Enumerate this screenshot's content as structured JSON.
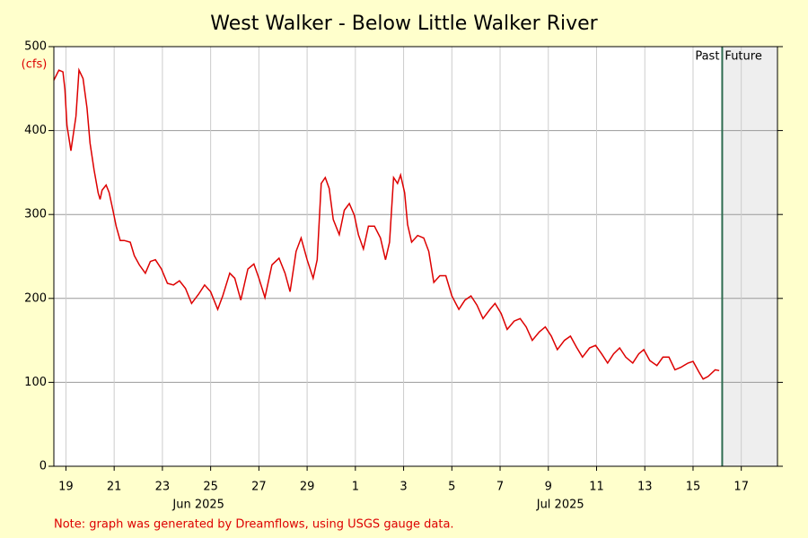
{
  "chart_data": {
    "type": "line",
    "title": "West Walker - Below Little Walker River",
    "y_label": "(cfs)",
    "note": "Note: graph was generated by Dreamflows, using USGS gauge data.",
    "past_label": "Past",
    "future_label": "Future",
    "now": "2025-07-16T17:00",
    "grid": true,
    "xlim": [
      "2025-06-19T00:00",
      "2025-07-19T00:00"
    ],
    "xticks": [
      {
        "value": "2025-06-19T12:00",
        "label": "19"
      },
      {
        "value": "2025-06-21T12:00",
        "label": "21"
      },
      {
        "value": "2025-06-23T12:00",
        "label": "23"
      },
      {
        "value": "2025-06-25T12:00",
        "label": "25"
      },
      {
        "value": "2025-06-27T12:00",
        "label": "27"
      },
      {
        "value": "2025-06-29T12:00",
        "label": "29"
      },
      {
        "value": "2025-07-01T12:00",
        "label": "1"
      },
      {
        "value": "2025-07-03T12:00",
        "label": "3"
      },
      {
        "value": "2025-07-05T12:00",
        "label": "5"
      },
      {
        "value": "2025-07-07T12:00",
        "label": "7"
      },
      {
        "value": "2025-07-09T12:00",
        "label": "9"
      },
      {
        "value": "2025-07-11T12:00",
        "label": "11"
      },
      {
        "value": "2025-07-13T12:00",
        "label": "13"
      },
      {
        "value": "2025-07-15T12:00",
        "label": "15"
      },
      {
        "value": "2025-07-17T12:00",
        "label": "17"
      }
    ],
    "month_labels": [
      {
        "value": "2025-06-25T00:00",
        "label": "Jun 2025"
      },
      {
        "value": "2025-07-10T00:00",
        "label": "Jul 2025"
      }
    ],
    "ylim": [
      0,
      500
    ],
    "yticks": [
      0,
      100,
      200,
      300,
      400,
      500
    ],
    "x": [
      "2025-06-19T00:00",
      "2025-06-19T05:00",
      "2025-06-19T09:00",
      "2025-06-19T11:00",
      "2025-06-19T13:00",
      "2025-06-19T17:00",
      "2025-06-19T22:00",
      "2025-06-20T01:00",
      "2025-06-20T05:00",
      "2025-06-20T09:00",
      "2025-06-20T12:00",
      "2025-06-20T16:00",
      "2025-06-20T20:00",
      "2025-06-20T22:00",
      "2025-06-21T00:00",
      "2025-06-21T04:00",
      "2025-06-21T07:00",
      "2025-06-21T11:00",
      "2025-06-21T14:00",
      "2025-06-21T18:00",
      "2025-06-21T22:00",
      "2025-06-22T04:00",
      "2025-06-22T08:00",
      "2025-06-22T13:00",
      "2025-06-22T19:00",
      "2025-06-23T00:00",
      "2025-06-23T05:00",
      "2025-06-23T11:00",
      "2025-06-23T17:00",
      "2025-06-23T23:00",
      "2025-06-24T05:00",
      "2025-06-24T11:00",
      "2025-06-24T17:00",
      "2025-06-25T00:00",
      "2025-06-25T06:00",
      "2025-06-25T12:00",
      "2025-06-25T19:00",
      "2025-06-26T00:00",
      "2025-06-26T07:00",
      "2025-06-26T12:00",
      "2025-06-26T18:00",
      "2025-06-27T01:00",
      "2025-06-27T07:00",
      "2025-06-27T12:00",
      "2025-06-27T18:00",
      "2025-06-28T01:00",
      "2025-06-28T08:00",
      "2025-06-28T14:00",
      "2025-06-28T19:00",
      "2025-06-29T01:00",
      "2025-06-29T06:00",
      "2025-06-29T12:00",
      "2025-06-29T18:00",
      "2025-06-29T22:00",
      "2025-06-30T02:00",
      "2025-06-30T06:00",
      "2025-06-30T10:00",
      "2025-06-30T14:00",
      "2025-06-30T20:00",
      "2025-07-01T01:00",
      "2025-07-01T06:00",
      "2025-07-01T11:00",
      "2025-07-01T15:00",
      "2025-07-01T20:00",
      "2025-07-02T01:00",
      "2025-07-02T07:00",
      "2025-07-02T13:00",
      "2025-07-02T18:00",
      "2025-07-02T22:00",
      "2025-07-03T02:00",
      "2025-07-03T06:00",
      "2025-07-03T09:00",
      "2025-07-03T13:00",
      "2025-07-03T16:00",
      "2025-07-03T20:00",
      "2025-07-04T02:00",
      "2025-07-04T08:00",
      "2025-07-04T13:00",
      "2025-07-04T18:00",
      "2025-07-05T00:00",
      "2025-07-05T06:00",
      "2025-07-05T12:00",
      "2025-07-05T19:00",
      "2025-07-06T01:00",
      "2025-07-06T07:00",
      "2025-07-06T13:00",
      "2025-07-06T19:00",
      "2025-07-07T02:00",
      "2025-07-07T07:00",
      "2025-07-07T13:00",
      "2025-07-07T19:00",
      "2025-07-08T02:00",
      "2025-07-08T08:00",
      "2025-07-08T14:00",
      "2025-07-08T20:00",
      "2025-07-09T03:00",
      "2025-07-09T09:00",
      "2025-07-09T15:00",
      "2025-07-09T21:00",
      "2025-07-10T04:00",
      "2025-07-10T10:00",
      "2025-07-10T16:00",
      "2025-07-10T22:00",
      "2025-07-11T05:00",
      "2025-07-11T11:00",
      "2025-07-11T17:00",
      "2025-07-11T23:00",
      "2025-07-12T05:00",
      "2025-07-12T11:00",
      "2025-07-12T17:00",
      "2025-07-13T00:00",
      "2025-07-13T06:00",
      "2025-07-13T11:00",
      "2025-07-13T17:00",
      "2025-07-14T00:00",
      "2025-07-14T06:00",
      "2025-07-14T12:00",
      "2025-07-14T18:00",
      "2025-07-15T00:00",
      "2025-07-15T07:00",
      "2025-07-15T12:00",
      "2025-07-15T18:00",
      "2025-07-15T22:00",
      "2025-07-16T03:00",
      "2025-07-16T10:00",
      "2025-07-16T14:00"
    ],
    "series": [
      {
        "name": "Flow",
        "color": "#dd0000",
        "values": [
          460,
          472,
          470,
          449,
          406,
          376,
          417,
          472,
          462,
          427,
          385,
          353,
          326,
          318,
          329,
          335,
          326,
          304,
          286,
          269,
          269,
          267,
          251,
          240,
          230,
          244,
          246,
          235,
          218,
          216,
          221,
          212,
          194,
          205,
          216,
          208,
          187,
          203,
          230,
          224,
          198,
          235,
          241,
          224,
          201,
          240,
          248,
          230,
          208,
          256,
          272,
          246,
          224,
          246,
          337,
          344,
          331,
          294,
          276,
          305,
          313,
          299,
          276,
          259,
          286,
          286,
          272,
          246,
          267,
          344,
          337,
          347,
          326,
          288,
          267,
          275,
          272,
          256,
          219,
          227,
          227,
          203,
          187,
          198,
          203,
          192,
          176,
          187,
          194,
          182,
          163,
          173,
          176,
          166,
          150,
          160,
          166,
          155,
          139,
          150,
          155,
          142,
          130,
          141,
          144,
          134,
          123,
          134,
          141,
          130,
          123,
          134,
          139,
          126,
          120,
          130,
          130,
          115,
          118,
          123,
          125,
          112,
          104,
          107,
          115,
          114
        ]
      }
    ]
  }
}
